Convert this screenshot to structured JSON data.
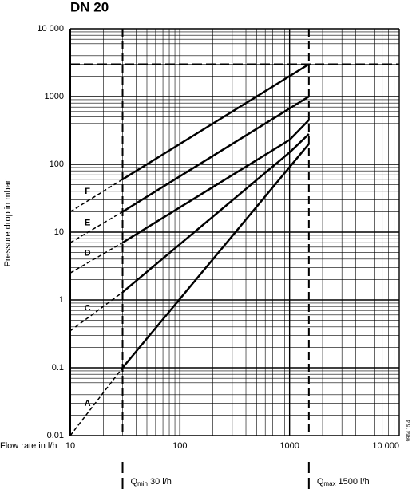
{
  "chart_data": {
    "type": "line",
    "title": "DN 20",
    "y_label": "Pressure drop in mbar",
    "x_label": "Flow rate in l/h",
    "side_note": "9964 15.4",
    "xlog": true,
    "ylog": true,
    "grid": true,
    "minor_grid": true,
    "color": "#000000",
    "xlim": [
      10,
      10000
    ],
    "ylim": [
      0.01,
      10000
    ],
    "xticks": [
      10,
      100,
      1000,
      {
        "value": 10000,
        "label": "10 000"
      }
    ],
    "yticks": [
      0.01,
      0.1,
      1,
      10,
      100,
      1000,
      {
        "value": 10000,
        "label": "10 000"
      }
    ],
    "hline": 3000,
    "qmin": {
      "value": 30,
      "symbol": "Q",
      "sub": "min",
      "text": "30 l/h"
    },
    "qmax": {
      "value": 1500,
      "symbol": "Q",
      "sub": "max",
      "text": "1500 l/h"
    },
    "series": [
      {
        "name": "F",
        "x": [
          10,
          30,
          1500
        ],
        "values": [
          20,
          60,
          3000
        ]
      },
      {
        "name": "E",
        "x": [
          10,
          30,
          1500
        ],
        "values": [
          7,
          20,
          1000
        ]
      },
      {
        "name": "D",
        "x": [
          10,
          30,
          1000,
          1500
        ],
        "values": [
          2.5,
          7,
          230,
          450
        ]
      },
      {
        "name": "C",
        "x": [
          10,
          30,
          1000,
          1500
        ],
        "values": [
          0.35,
          1.3,
          150,
          280
        ]
      },
      {
        "name": "A",
        "x": [
          10,
          30,
          1500
        ],
        "values": [
          0.01,
          0.1,
          200
        ]
      }
    ]
  }
}
